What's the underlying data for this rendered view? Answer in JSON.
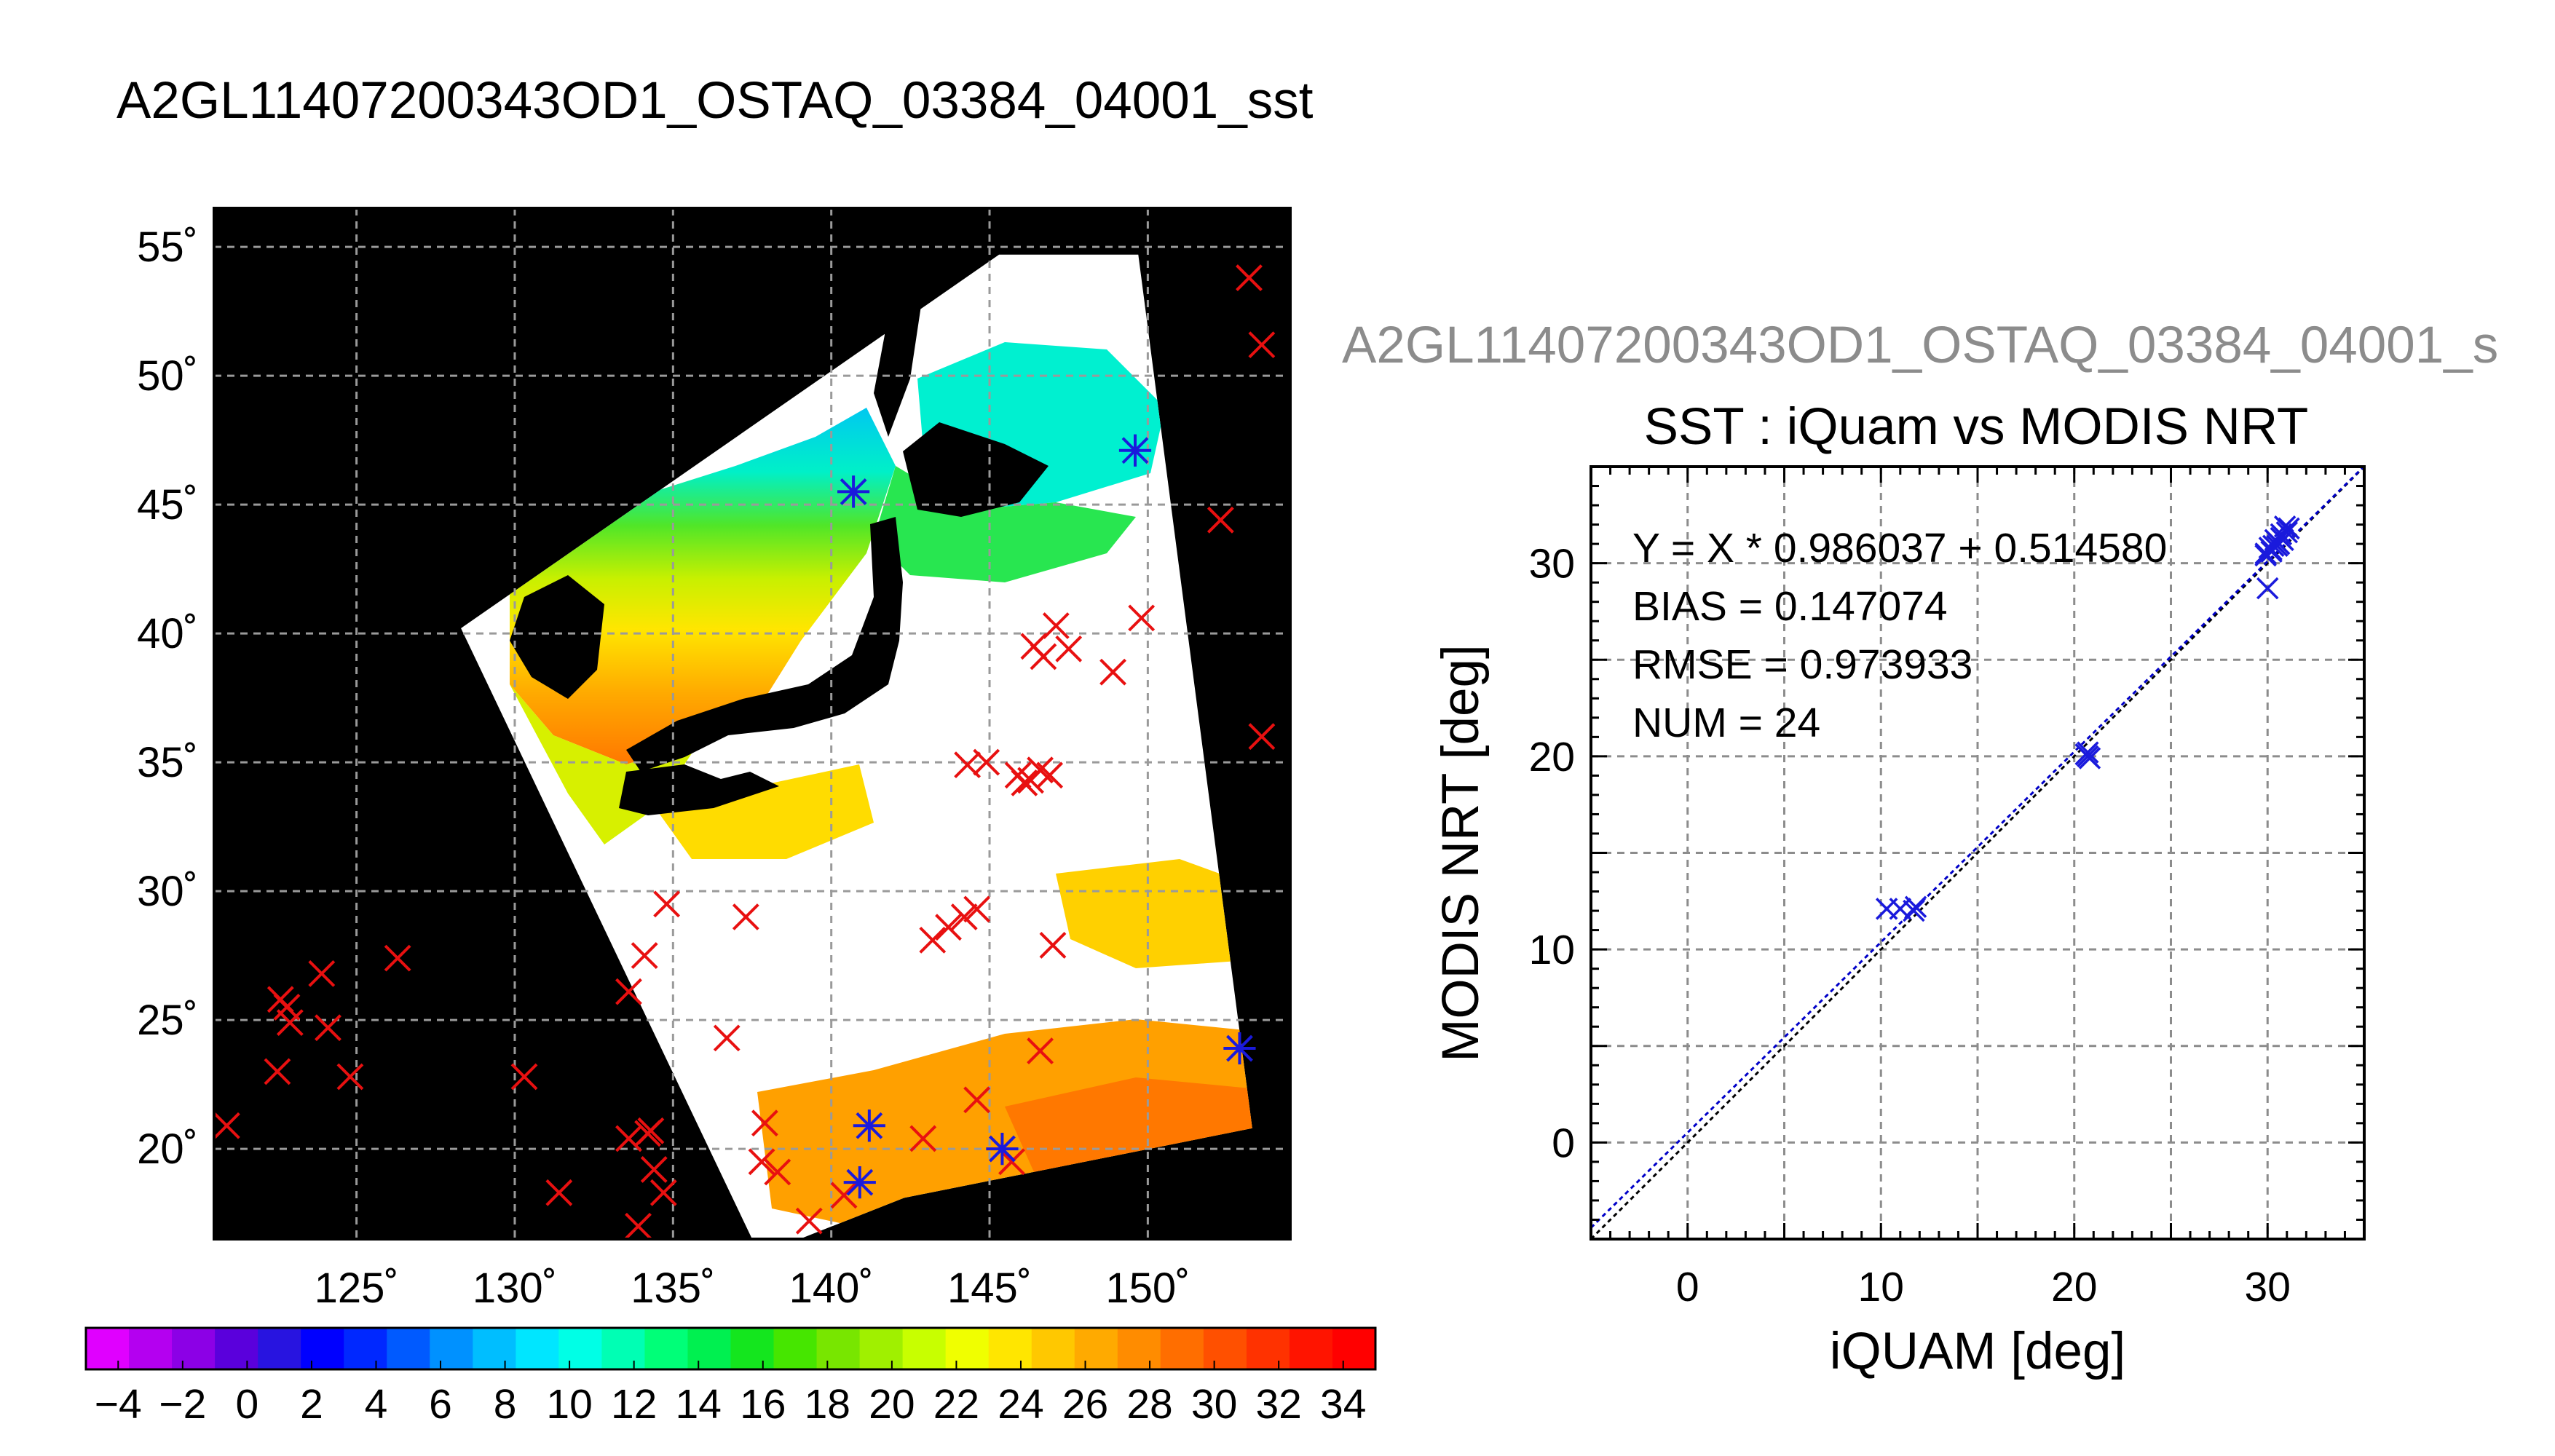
{
  "page_title": "A2GL11407200343OD1_OSTAQ_03384_04001_sst",
  "overflow_title": "A2GL11407200343OD1_OSTAQ_03384_04001_s",
  "colors": {
    "land": "#000000",
    "cloud": "#ffffff",
    "modis_match": "#1a1adc",
    "iquam_only": "#e81010",
    "fit_line": "#0000c8",
    "one_to_one": "#000000",
    "grid": "#888888"
  },
  "chart_data": [
    {
      "type": "scatter",
      "subtype": "map",
      "xlim": [
        120.5,
        154.5
      ],
      "ylim": [
        16.5,
        56.5
      ],
      "x_ticks": [
        125,
        130,
        135,
        140,
        145,
        150
      ],
      "x_tick_labels": [
        "125˚",
        "130˚",
        "135˚",
        "140˚",
        "145˚",
        "150˚"
      ],
      "y_ticks": [
        20,
        25,
        30,
        35,
        40,
        45,
        50,
        55
      ],
      "y_tick_labels": [
        "20˚",
        "25˚",
        "30˚",
        "35˚",
        "40˚",
        "45˚",
        "50˚",
        "55˚"
      ],
      "grid": true,
      "swath_lonlat": [
        [
          128.3,
          40.2
        ],
        [
          145.3,
          54.7
        ],
        [
          149.7,
          54.7
        ],
        [
          153.3,
          20.8
        ],
        [
          142.3,
          18.1
        ],
        [
          139.0,
          16.5
        ],
        [
          137.5,
          16.5
        ]
      ],
      "series": [
        {
          "marker": "x",
          "color": "#e81010",
          "points": [
            [
              120.9,
              20.9
            ],
            [
              122.5,
              23.0
            ],
            [
              122.6,
              25.8
            ],
            [
              122.8,
              25.5
            ],
            [
              122.9,
              24.9
            ],
            [
              123.9,
              26.8
            ],
            [
              124.1,
              24.7
            ],
            [
              124.8,
              22.8
            ],
            [
              126.3,
              27.4
            ],
            [
              130.3,
              22.8
            ],
            [
              131.4,
              18.3
            ],
            [
              133.6,
              26.1
            ],
            [
              133.6,
              20.4
            ],
            [
              133.9,
              17.0
            ],
            [
              134.1,
              27.5
            ],
            [
              134.2,
              20.6
            ],
            [
              134.3,
              20.7
            ],
            [
              134.4,
              19.2
            ],
            [
              134.7,
              18.3
            ],
            [
              134.8,
              29.5
            ],
            [
              136.7,
              24.3
            ],
            [
              137.3,
              29.0
            ],
            [
              137.8,
              19.5
            ],
            [
              137.9,
              21.0
            ],
            [
              138.3,
              19.1
            ],
            [
              139.3,
              17.2
            ],
            [
              140.4,
              18.2
            ],
            [
              142.9,
              20.4
            ],
            [
              143.2,
              28.1
            ],
            [
              143.7,
              28.6
            ],
            [
              144.2,
              29.0
            ],
            [
              144.3,
              34.9
            ],
            [
              144.6,
              29.3
            ],
            [
              144.6,
              21.9
            ],
            [
              144.9,
              35.0
            ],
            [
              145.7,
              19.5
            ],
            [
              145.9,
              34.5
            ],
            [
              146.1,
              34.2
            ],
            [
              146.3,
              34.3
            ],
            [
              146.4,
              39.5
            ],
            [
              146.6,
              34.7
            ],
            [
              146.6,
              23.8
            ],
            [
              146.7,
              39.1
            ],
            [
              146.9,
              34.5
            ],
            [
              147.0,
              27.9
            ],
            [
              147.1,
              40.3
            ],
            [
              147.5,
              39.4
            ],
            [
              148.9,
              38.5
            ],
            [
              149.8,
              40.6
            ],
            [
              152.3,
              44.4
            ],
            [
              153.2,
              53.8
            ],
            [
              153.6,
              51.2
            ],
            [
              153.6,
              36.0
            ]
          ]
        },
        {
          "marker": "asterisk",
          "color": "#1a1adc",
          "points": [
            [
              140.7,
              45.5
            ],
            [
              149.6,
              47.1
            ],
            [
              140.9,
              18.7
            ],
            [
              141.2,
              20.9
            ],
            [
              145.4,
              20.0
            ],
            [
              152.9,
              23.9
            ]
          ]
        }
      ]
    },
    {
      "type": "scatter",
      "title": "SST : iQuam vs MODIS NRT",
      "xlabel": "iQUAM [deg]",
      "ylabel": "MODIS NRT [deg]",
      "xlim": [
        -5,
        35
      ],
      "ylim": [
        -5,
        35
      ],
      "x_ticks": [
        0,
        10,
        20,
        30
      ],
      "y_ticks": [
        0,
        10,
        20,
        30
      ],
      "grid": true,
      "annotations": [
        "Y = X * 0.986037 + 0.514580",
        "BIAS = 0.147074",
        "RMSE = 0.973933",
        "NUM = 24"
      ],
      "fit": {
        "slope": 0.986037,
        "intercept": 0.51458
      },
      "identity_line": true,
      "x": [
        10.3,
        11.0,
        11.8,
        20.6,
        20.7,
        20.8,
        29.9,
        30.0,
        30.1,
        30.2,
        30.3,
        30.4,
        30.5,
        30.6,
        30.7,
        30.8,
        30.9,
        31.0,
        31.1,
        29.9,
        20.7,
        11.7,
        30.2,
        30.7
      ],
      "y": [
        12.1,
        12.1,
        12.2,
        20.1,
        20.0,
        19.9,
        30.4,
        28.7,
        30.8,
        30.6,
        30.9,
        31.2,
        30.9,
        31.0,
        31.5,
        31.2,
        31.9,
        31.6,
        31.8,
        30.5,
        20.2,
        12.0,
        30.7,
        31.3
      ]
    },
    {
      "type": "heatmap",
      "subtype": "colorbar",
      "ticks": [
        -4,
        -2,
        0,
        2,
        4,
        6,
        8,
        10,
        12,
        14,
        16,
        18,
        20,
        22,
        24,
        26,
        28,
        30,
        32,
        34
      ],
      "tick_labels": [
        "−4",
        "−2",
        "0",
        "2",
        "4",
        "6",
        "8",
        "10",
        "12",
        "14",
        "16",
        "18",
        "20",
        "22",
        "24",
        "26",
        "28",
        "30",
        "32",
        "34"
      ],
      "range": [
        -5,
        35
      ],
      "colors": [
        "#e000ff",
        "#b400f0",
        "#8c00e6",
        "#5a00dc",
        "#2814e0",
        "#0000ff",
        "#0028ff",
        "#005aff",
        "#0091ff",
        "#00beff",
        "#00e6ff",
        "#00ffe6",
        "#00ffb4",
        "#00ff78",
        "#00f050",
        "#14e61e",
        "#46e600",
        "#78e600",
        "#a0f000",
        "#c8ff00",
        "#f0ff00",
        "#ffe600",
        "#ffc800",
        "#ffaa00",
        "#ff8c00",
        "#ff6e00",
        "#ff5000",
        "#ff3200",
        "#ff1400",
        "#ff0000"
      ]
    }
  ]
}
